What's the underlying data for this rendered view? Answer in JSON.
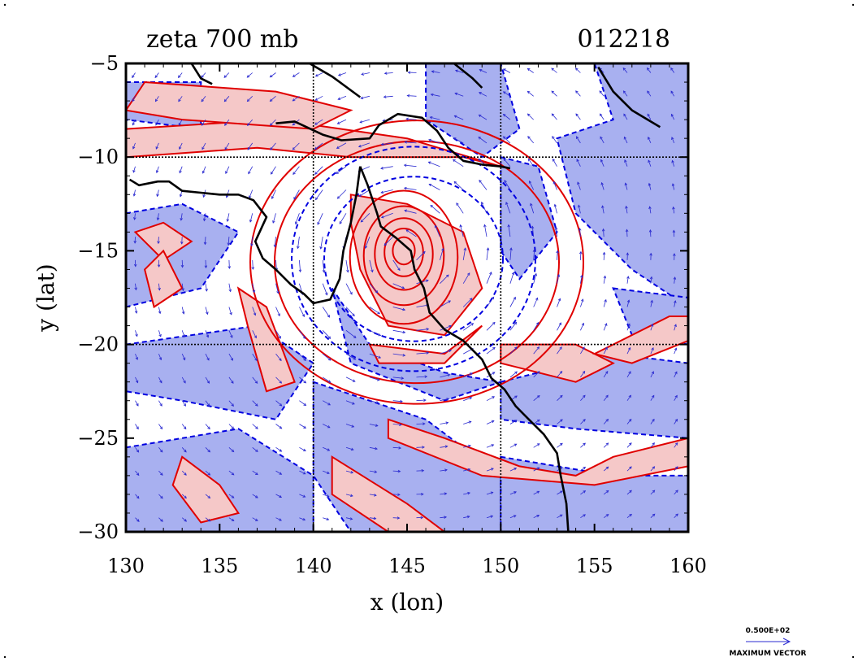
{
  "plot": {
    "title": "zeta 700 mb",
    "timestamp": "012218",
    "xlabel": "x (lon)",
    "ylabel": "y (lat)"
  },
  "axes": {
    "x": {
      "min": 130,
      "max": 160,
      "ticks": [
        "130",
        "135",
        "140",
        "145",
        "150",
        "155",
        "160"
      ],
      "major_grid": [
        140,
        150
      ]
    },
    "y": {
      "min": -30,
      "max": -5,
      "ticks": [
        "−5",
        "−10",
        "−15",
        "−20",
        "−25",
        "−30"
      ],
      "major_grid": [
        -10,
        -20
      ]
    }
  },
  "legend": {
    "vector_value": "0.500E+02",
    "vector_label": "MAXIMUM VECTOR"
  },
  "colors": {
    "positive_contour": "#e00000",
    "positive_fill": "#f5c8c8",
    "negative_contour": "#0000e0",
    "negative_fill": "#a8b0f0",
    "coastline": "#000000",
    "vectors": "#2a2ad0",
    "grid": "#000000"
  },
  "field": {
    "variable": "zeta",
    "level": "700 mb",
    "cyclone_center": {
      "lon": 145,
      "lat": -15
    }
  }
}
